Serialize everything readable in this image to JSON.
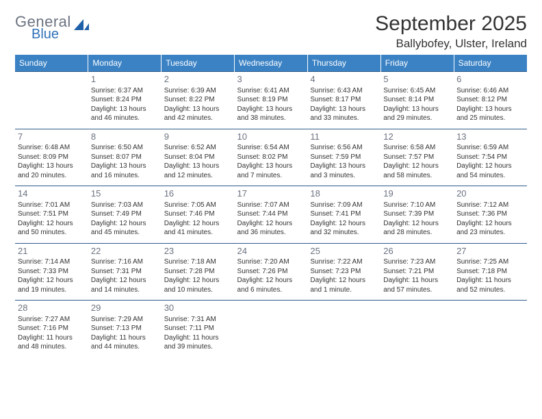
{
  "logo": {
    "general": "General",
    "blue": "Blue",
    "shape_color": "#1f5fa8"
  },
  "title": "September 2025",
  "location": "Ballybofey, Ulster, Ireland",
  "colors": {
    "header_bg": "#3b82c4",
    "header_text": "#ffffff",
    "row_divider": "#2f5a8a",
    "daynum": "#6b7280",
    "body_text": "#333333",
    "background": "#ffffff"
  },
  "typography": {
    "title_fontsize": 30,
    "location_fontsize": 17,
    "header_fontsize": 12,
    "daynum_fontsize": 13,
    "cell_fontsize": 10
  },
  "weekdays": [
    "Sunday",
    "Monday",
    "Tuesday",
    "Wednesday",
    "Thursday",
    "Friday",
    "Saturday"
  ],
  "grid": {
    "rows": 5,
    "cols": 7,
    "first_weekday_index": 1,
    "days_in_month": 30
  },
  "days": [
    {
      "n": "1",
      "sunrise": "Sunrise: 6:37 AM",
      "sunset": "Sunset: 8:24 PM",
      "daylight": "Daylight: 13 hours and 46 minutes."
    },
    {
      "n": "2",
      "sunrise": "Sunrise: 6:39 AM",
      "sunset": "Sunset: 8:22 PM",
      "daylight": "Daylight: 13 hours and 42 minutes."
    },
    {
      "n": "3",
      "sunrise": "Sunrise: 6:41 AM",
      "sunset": "Sunset: 8:19 PM",
      "daylight": "Daylight: 13 hours and 38 minutes."
    },
    {
      "n": "4",
      "sunrise": "Sunrise: 6:43 AM",
      "sunset": "Sunset: 8:17 PM",
      "daylight": "Daylight: 13 hours and 33 minutes."
    },
    {
      "n": "5",
      "sunrise": "Sunrise: 6:45 AM",
      "sunset": "Sunset: 8:14 PM",
      "daylight": "Daylight: 13 hours and 29 minutes."
    },
    {
      "n": "6",
      "sunrise": "Sunrise: 6:46 AM",
      "sunset": "Sunset: 8:12 PM",
      "daylight": "Daylight: 13 hours and 25 minutes."
    },
    {
      "n": "7",
      "sunrise": "Sunrise: 6:48 AM",
      "sunset": "Sunset: 8:09 PM",
      "daylight": "Daylight: 13 hours and 20 minutes."
    },
    {
      "n": "8",
      "sunrise": "Sunrise: 6:50 AM",
      "sunset": "Sunset: 8:07 PM",
      "daylight": "Daylight: 13 hours and 16 minutes."
    },
    {
      "n": "9",
      "sunrise": "Sunrise: 6:52 AM",
      "sunset": "Sunset: 8:04 PM",
      "daylight": "Daylight: 13 hours and 12 minutes."
    },
    {
      "n": "10",
      "sunrise": "Sunrise: 6:54 AM",
      "sunset": "Sunset: 8:02 PM",
      "daylight": "Daylight: 13 hours and 7 minutes."
    },
    {
      "n": "11",
      "sunrise": "Sunrise: 6:56 AM",
      "sunset": "Sunset: 7:59 PM",
      "daylight": "Daylight: 13 hours and 3 minutes."
    },
    {
      "n": "12",
      "sunrise": "Sunrise: 6:58 AM",
      "sunset": "Sunset: 7:57 PM",
      "daylight": "Daylight: 12 hours and 58 minutes."
    },
    {
      "n": "13",
      "sunrise": "Sunrise: 6:59 AM",
      "sunset": "Sunset: 7:54 PM",
      "daylight": "Daylight: 12 hours and 54 minutes."
    },
    {
      "n": "14",
      "sunrise": "Sunrise: 7:01 AM",
      "sunset": "Sunset: 7:51 PM",
      "daylight": "Daylight: 12 hours and 50 minutes."
    },
    {
      "n": "15",
      "sunrise": "Sunrise: 7:03 AM",
      "sunset": "Sunset: 7:49 PM",
      "daylight": "Daylight: 12 hours and 45 minutes."
    },
    {
      "n": "16",
      "sunrise": "Sunrise: 7:05 AM",
      "sunset": "Sunset: 7:46 PM",
      "daylight": "Daylight: 12 hours and 41 minutes."
    },
    {
      "n": "17",
      "sunrise": "Sunrise: 7:07 AM",
      "sunset": "Sunset: 7:44 PM",
      "daylight": "Daylight: 12 hours and 36 minutes."
    },
    {
      "n": "18",
      "sunrise": "Sunrise: 7:09 AM",
      "sunset": "Sunset: 7:41 PM",
      "daylight": "Daylight: 12 hours and 32 minutes."
    },
    {
      "n": "19",
      "sunrise": "Sunrise: 7:10 AM",
      "sunset": "Sunset: 7:39 PM",
      "daylight": "Daylight: 12 hours and 28 minutes."
    },
    {
      "n": "20",
      "sunrise": "Sunrise: 7:12 AM",
      "sunset": "Sunset: 7:36 PM",
      "daylight": "Daylight: 12 hours and 23 minutes."
    },
    {
      "n": "21",
      "sunrise": "Sunrise: 7:14 AM",
      "sunset": "Sunset: 7:33 PM",
      "daylight": "Daylight: 12 hours and 19 minutes."
    },
    {
      "n": "22",
      "sunrise": "Sunrise: 7:16 AM",
      "sunset": "Sunset: 7:31 PM",
      "daylight": "Daylight: 12 hours and 14 minutes."
    },
    {
      "n": "23",
      "sunrise": "Sunrise: 7:18 AM",
      "sunset": "Sunset: 7:28 PM",
      "daylight": "Daylight: 12 hours and 10 minutes."
    },
    {
      "n": "24",
      "sunrise": "Sunrise: 7:20 AM",
      "sunset": "Sunset: 7:26 PM",
      "daylight": "Daylight: 12 hours and 6 minutes."
    },
    {
      "n": "25",
      "sunrise": "Sunrise: 7:22 AM",
      "sunset": "Sunset: 7:23 PM",
      "daylight": "Daylight: 12 hours and 1 minute."
    },
    {
      "n": "26",
      "sunrise": "Sunrise: 7:23 AM",
      "sunset": "Sunset: 7:21 PM",
      "daylight": "Daylight: 11 hours and 57 minutes."
    },
    {
      "n": "27",
      "sunrise": "Sunrise: 7:25 AM",
      "sunset": "Sunset: 7:18 PM",
      "daylight": "Daylight: 11 hours and 52 minutes."
    },
    {
      "n": "28",
      "sunrise": "Sunrise: 7:27 AM",
      "sunset": "Sunset: 7:16 PM",
      "daylight": "Daylight: 11 hours and 48 minutes."
    },
    {
      "n": "29",
      "sunrise": "Sunrise: 7:29 AM",
      "sunset": "Sunset: 7:13 PM",
      "daylight": "Daylight: 11 hours and 44 minutes."
    },
    {
      "n": "30",
      "sunrise": "Sunrise: 7:31 AM",
      "sunset": "Sunset: 7:11 PM",
      "daylight": "Daylight: 11 hours and 39 minutes."
    }
  ]
}
